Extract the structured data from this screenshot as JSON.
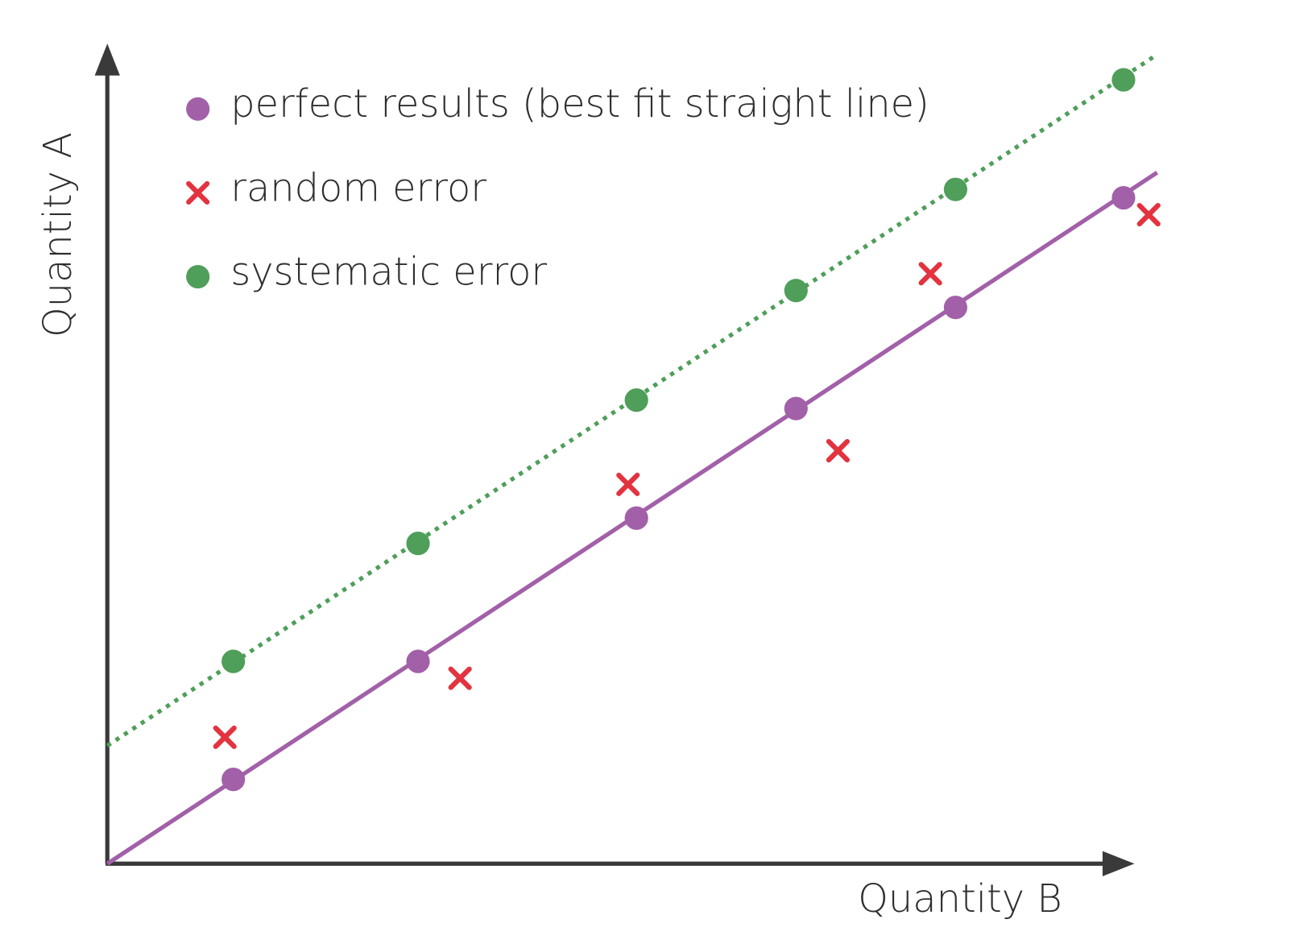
{
  "chart_data": {
    "type": "scatter",
    "x_label": "Quantity B",
    "y_label": "Quantity A",
    "xlim": [
      0,
      12.2
    ],
    "ylim": [
      0,
      9.7
    ],
    "series": [
      {
        "name": "perfect results (best fit straight line)",
        "color": "#a260a8",
        "marker": "circle",
        "x": [
          1.5,
          3.7,
          6.3,
          8.2,
          10.1,
          12.1
        ],
        "values": [
          1.0,
          2.4,
          4.1,
          5.4,
          6.6,
          7.9
        ],
        "line": {
          "style": "solid",
          "x": [
            0,
            12.5
          ],
          "values": [
            0,
            8.2
          ]
        }
      },
      {
        "name": "random error",
        "color": "#e2333f",
        "marker": "cross",
        "x": [
          1.4,
          4.2,
          6.2,
          8.7,
          9.8,
          12.4
        ],
        "values": [
          1.5,
          2.2,
          4.5,
          4.9,
          7.0,
          7.7
        ]
      },
      {
        "name": "systematic error",
        "color": "#4f9e5a",
        "marker": "circle",
        "x": [
          1.5,
          3.7,
          6.3,
          8.2,
          10.1,
          12.1
        ],
        "values": [
          2.4,
          3.8,
          5.5,
          6.8,
          8.0,
          9.3
        ],
        "line": {
          "style": "dotted",
          "x": [
            0,
            12.5
          ],
          "values": [
            1.4,
            9.6
          ]
        }
      }
    ]
  }
}
